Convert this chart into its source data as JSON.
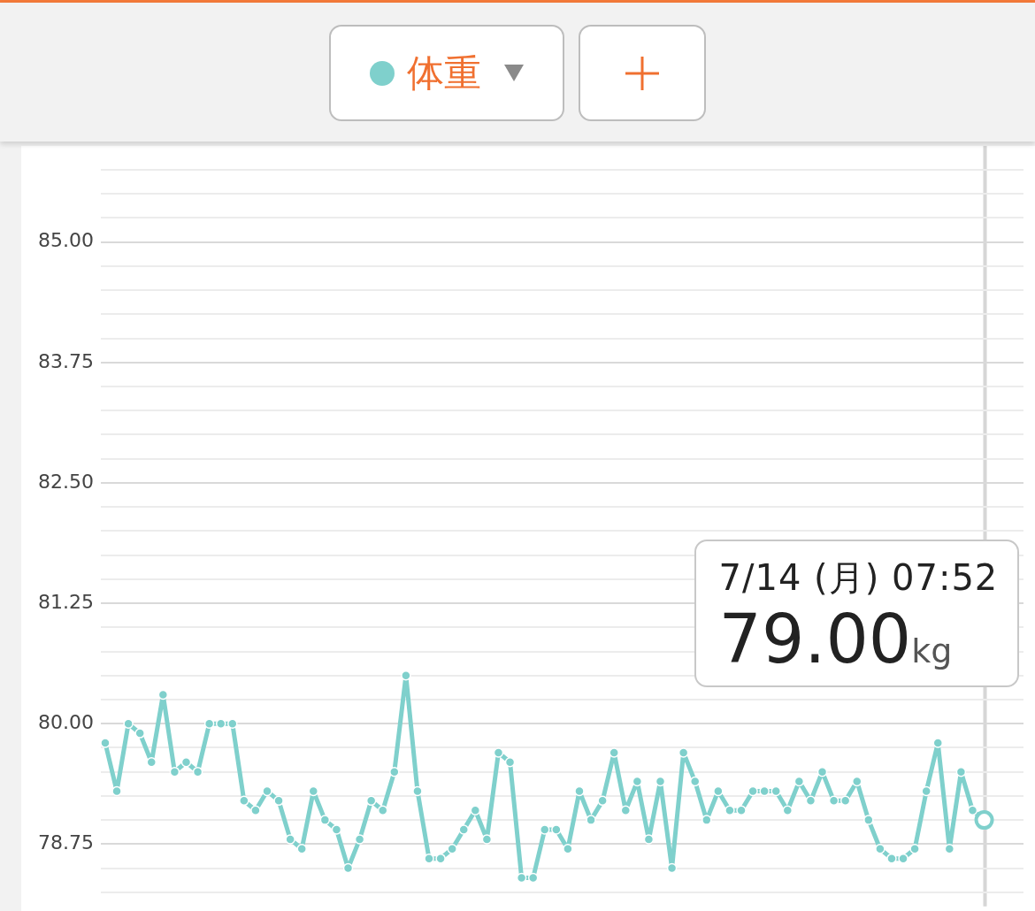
{
  "chart_data": {
    "type": "line",
    "legend": "top",
    "categories": [
      null,
      null,
      null,
      null,
      null,
      null,
      null,
      null,
      null,
      null,
      null,
      null,
      null,
      null,
      null,
      null,
      null,
      null,
      null,
      null,
      null,
      null,
      null,
      null,
      null,
      null,
      null,
      null,
      null,
      null,
      null,
      null,
      null,
      null,
      null,
      null,
      null,
      null,
      null,
      null,
      null,
      null,
      null,
      null,
      null,
      null,
      null,
      null,
      null,
      null,
      null,
      null,
      null,
      null,
      null,
      null,
      null,
      null,
      null,
      null,
      null,
      null,
      null,
      null,
      null,
      null,
      null,
      null,
      null,
      null,
      null,
      null,
      null,
      null,
      null,
      null,
      null
    ],
    "series": [
      {
        "name": "体重",
        "color": "#7fd0cc",
        "values": [
          79.8,
          79.3,
          80.0,
          79.9,
          79.6,
          80.3,
          79.5,
          79.6,
          79.5,
          80.0,
          80.0,
          80.0,
          79.2,
          79.1,
          79.3,
          79.2,
          78.8,
          78.7,
          79.3,
          79.0,
          78.9,
          78.5,
          78.8,
          79.2,
          79.1,
          79.5,
          80.5,
          79.3,
          78.6,
          78.6,
          78.7,
          78.9,
          79.1,
          78.8,
          79.7,
          79.6,
          78.4,
          78.4,
          78.9,
          78.9,
          78.7,
          79.3,
          79.0,
          79.2,
          79.7,
          79.1,
          79.4,
          78.8,
          79.4,
          78.5,
          79.7,
          79.4,
          79.0,
          79.3,
          79.1,
          79.1,
          79.3,
          79.3,
          79.3,
          79.1,
          79.4,
          79.2,
          79.5,
          79.2,
          79.2,
          79.4,
          79.0,
          78.7,
          78.6,
          78.6,
          78.7,
          79.3,
          79.8,
          78.7,
          79.5,
          79.1,
          79.0
        ]
      }
    ],
    "ylim": [
      78.25,
      85.75
    ],
    "yticks": [
      {
        "value": 78.25,
        "label": null
      },
      {
        "value": 78.5,
        "label": null
      },
      {
        "value": 78.75,
        "label": "78.75"
      },
      {
        "value": 79,
        "label": null
      },
      {
        "value": 79.25,
        "label": null
      },
      {
        "value": 79.5,
        "label": null
      },
      {
        "value": 79.75,
        "label": null
      },
      {
        "value": 80,
        "label": "80.00"
      },
      {
        "value": 80.25,
        "label": null
      },
      {
        "value": 80.5,
        "label": null
      },
      {
        "value": 80.75,
        "label": null
      },
      {
        "value": 81,
        "label": null
      },
      {
        "value": 81.25,
        "label": "81.25"
      },
      {
        "value": 81.5,
        "label": null
      },
      {
        "value": 81.75,
        "label": null
      },
      {
        "value": 82,
        "label": null
      },
      {
        "value": 82.25,
        "label": null
      },
      {
        "value": 82.5,
        "label": "82.50"
      },
      {
        "value": 82.75,
        "label": null
      },
      {
        "value": 83,
        "label": null
      },
      {
        "value": 83.25,
        "label": null
      },
      {
        "value": 83.5,
        "label": null
      },
      {
        "value": 83.75,
        "label": "83.75"
      },
      {
        "value": 84,
        "label": null
      },
      {
        "value": 84.25,
        "label": null
      },
      {
        "value": 84.5,
        "label": null
      },
      {
        "value": 84.75,
        "label": null
      },
      {
        "value": 85,
        "label": "85.00"
      },
      {
        "value": 85.25,
        "label": null
      },
      {
        "value": 85.5,
        "label": null
      },
      {
        "value": 85.75,
        "label": null
      }
    ],
    "grid": "y",
    "marker": "circle",
    "line_style": "solid",
    "tick_labels": "y",
    "annotations": [
      "7/14 (月) 07:52",
      "79.00kg"
    ]
  }
}
